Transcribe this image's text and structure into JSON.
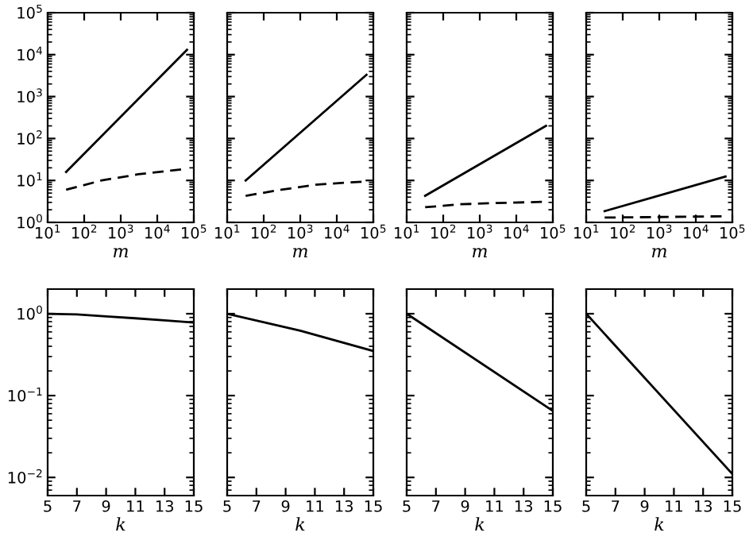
{
  "chart_data": [
    {
      "type": "line",
      "xlabel": "m",
      "log": "xy",
      "xlim": [
        10,
        100000
      ],
      "ylim": [
        1,
        100000
      ],
      "xticks": [
        {
          "value": 10,
          "label": "10$^{1}$"
        },
        {
          "value": 100,
          "label": "10$^{2}$"
        },
        {
          "value": 1000,
          "label": "10$^{3}$"
        },
        {
          "value": 10000,
          "label": "10$^{4}$"
        },
        {
          "value": 100000,
          "label": "10$^{5}$"
        }
      ],
      "yticks": [
        {
          "value": 1,
          "label": "10$^{0}$"
        },
        {
          "value": 10,
          "label": "10$^{1}$"
        },
        {
          "value": 100,
          "label": "10$^{2}$"
        },
        {
          "value": 1000,
          "label": "10$^{3}$"
        },
        {
          "value": 10000,
          "label": "10$^{4}$"
        },
        {
          "value": 100000,
          "label": "10$^{5}$"
        }
      ],
      "color": "#000000",
      "series": [
        {
          "x": [
            32,
            65000
          ],
          "values": [
            16,
            13000
          ],
          "line_style": "solid"
        },
        {
          "x": [
            32,
            300,
            3000,
            65000
          ],
          "values": [
            6,
            10,
            14,
            19
          ],
          "line_style": "dashed"
        }
      ]
    },
    {
      "type": "line",
      "xlabel": "m",
      "log": "xy",
      "tick_labels": "x",
      "xlim": [
        10,
        100000
      ],
      "ylim": [
        1,
        100000
      ],
      "xticks": [
        {
          "value": 10,
          "label": "10$^{1}$"
        },
        {
          "value": 100,
          "label": "10$^{2}$"
        },
        {
          "value": 1000,
          "label": "10$^{3}$"
        },
        {
          "value": 10000,
          "label": "10$^{4}$"
        },
        {
          "value": 100000,
          "label": "10$^{5}$"
        }
      ],
      "yticks": [
        1,
        10,
        100,
        1000,
        10000,
        100000
      ],
      "color": "#000000",
      "series": [
        {
          "x": [
            32,
            65000
          ],
          "values": [
            10,
            3300
          ],
          "line_style": "solid"
        },
        {
          "x": [
            32,
            300,
            3000,
            65000
          ],
          "values": [
            4.3,
            6,
            8,
            9.5
          ],
          "line_style": "dashed"
        }
      ]
    },
    {
      "type": "line",
      "xlabel": "m",
      "log": "xy",
      "tick_labels": "x",
      "xlim": [
        10,
        100000
      ],
      "ylim": [
        1,
        100000
      ],
      "xticks": [
        {
          "value": 10,
          "label": "10$^{1}$"
        },
        {
          "value": 100,
          "label": "10$^{2}$"
        },
        {
          "value": 1000,
          "label": "10$^{3}$"
        },
        {
          "value": 10000,
          "label": "10$^{4}$"
        },
        {
          "value": 100000,
          "label": "10$^{5}$"
        }
      ],
      "yticks": [
        1,
        10,
        100,
        1000,
        10000,
        100000
      ],
      "color": "#000000",
      "series": [
        {
          "x": [
            32,
            65000
          ],
          "values": [
            4.3,
            200
          ],
          "line_style": "solid"
        },
        {
          "x": [
            32,
            300,
            3000,
            65000
          ],
          "values": [
            2.3,
            2.7,
            2.9,
            3.1
          ],
          "line_style": "dashed"
        }
      ]
    },
    {
      "type": "line",
      "xlabel": "m",
      "log": "xy",
      "tick_labels": "x",
      "xlim": [
        10,
        100000
      ],
      "ylim": [
        1,
        100000
      ],
      "xticks": [
        {
          "value": 10,
          "label": "10$^{1}$"
        },
        {
          "value": 100,
          "label": "10$^{2}$"
        },
        {
          "value": 1000,
          "label": "10$^{3}$"
        },
        {
          "value": 10000,
          "label": "10$^{4}$"
        },
        {
          "value": 100000,
          "label": "10$^{5}$"
        }
      ],
      "yticks": [
        1,
        10,
        100,
        1000,
        10000,
        100000
      ],
      "color": "#000000",
      "series": [
        {
          "x": [
            32,
            65000
          ],
          "values": [
            1.85,
            12.4
          ],
          "line_style": "solid"
        },
        {
          "x": [
            32,
            65000
          ],
          "values": [
            1.3,
            1.4
          ],
          "line_style": "dashed"
        }
      ]
    },
    {
      "type": "line",
      "xlabel": "k",
      "log": "y",
      "xlim": [
        5,
        15
      ],
      "ylim": [
        0.006,
        2
      ],
      "xticks": [
        5,
        7,
        9,
        11,
        13,
        15
      ],
      "yticks": [
        {
          "value": 0.01,
          "label": "10$^{−2}$"
        },
        {
          "value": 0.1,
          "label": "10$^{−1}$"
        },
        {
          "value": 1,
          "label": "10$^{0}$"
        }
      ],
      "color": "#000000",
      "series": [
        {
          "x": [
            5,
            7,
            9,
            11,
            13,
            15
          ],
          "values": [
            1.0,
            0.98,
            0.93,
            0.88,
            0.83,
            0.78
          ],
          "line_style": "solid"
        }
      ]
    },
    {
      "type": "line",
      "xlabel": "k",
      "log": "y",
      "tick_labels": "x",
      "xlim": [
        5,
        15
      ],
      "ylim": [
        0.006,
        2
      ],
      "xticks": [
        5,
        7,
        9,
        11,
        13,
        15
      ],
      "yticks": [
        0.01,
        0.1,
        1
      ],
      "color": "#000000",
      "series": [
        {
          "x": [
            5,
            10,
            15
          ],
          "values": [
            1.0,
            0.62,
            0.35
          ],
          "line_style": "solid"
        }
      ]
    },
    {
      "type": "line",
      "xlabel": "k",
      "log": "y",
      "tick_labels": "x",
      "xlim": [
        5,
        15
      ],
      "ylim": [
        0.006,
        2
      ],
      "xticks": [
        5,
        7,
        9,
        11,
        13,
        15
      ],
      "yticks": [
        0.01,
        0.1,
        1
      ],
      "color": "#000000",
      "series": [
        {
          "x": [
            5,
            15
          ],
          "values": [
            1.0,
            0.065
          ],
          "line_style": "solid"
        }
      ]
    },
    {
      "type": "line",
      "xlabel": "k",
      "log": "y",
      "tick_labels": "x",
      "xlim": [
        5,
        15
      ],
      "ylim": [
        0.006,
        2
      ],
      "xticks": [
        5,
        7,
        9,
        11,
        13,
        15
      ],
      "yticks": [
        0.01,
        0.1,
        1
      ],
      "color": "#000000",
      "series": [
        {
          "x": [
            5,
            15
          ],
          "values": [
            1.0,
            0.011
          ],
          "line_style": "solid"
        }
      ]
    }
  ]
}
